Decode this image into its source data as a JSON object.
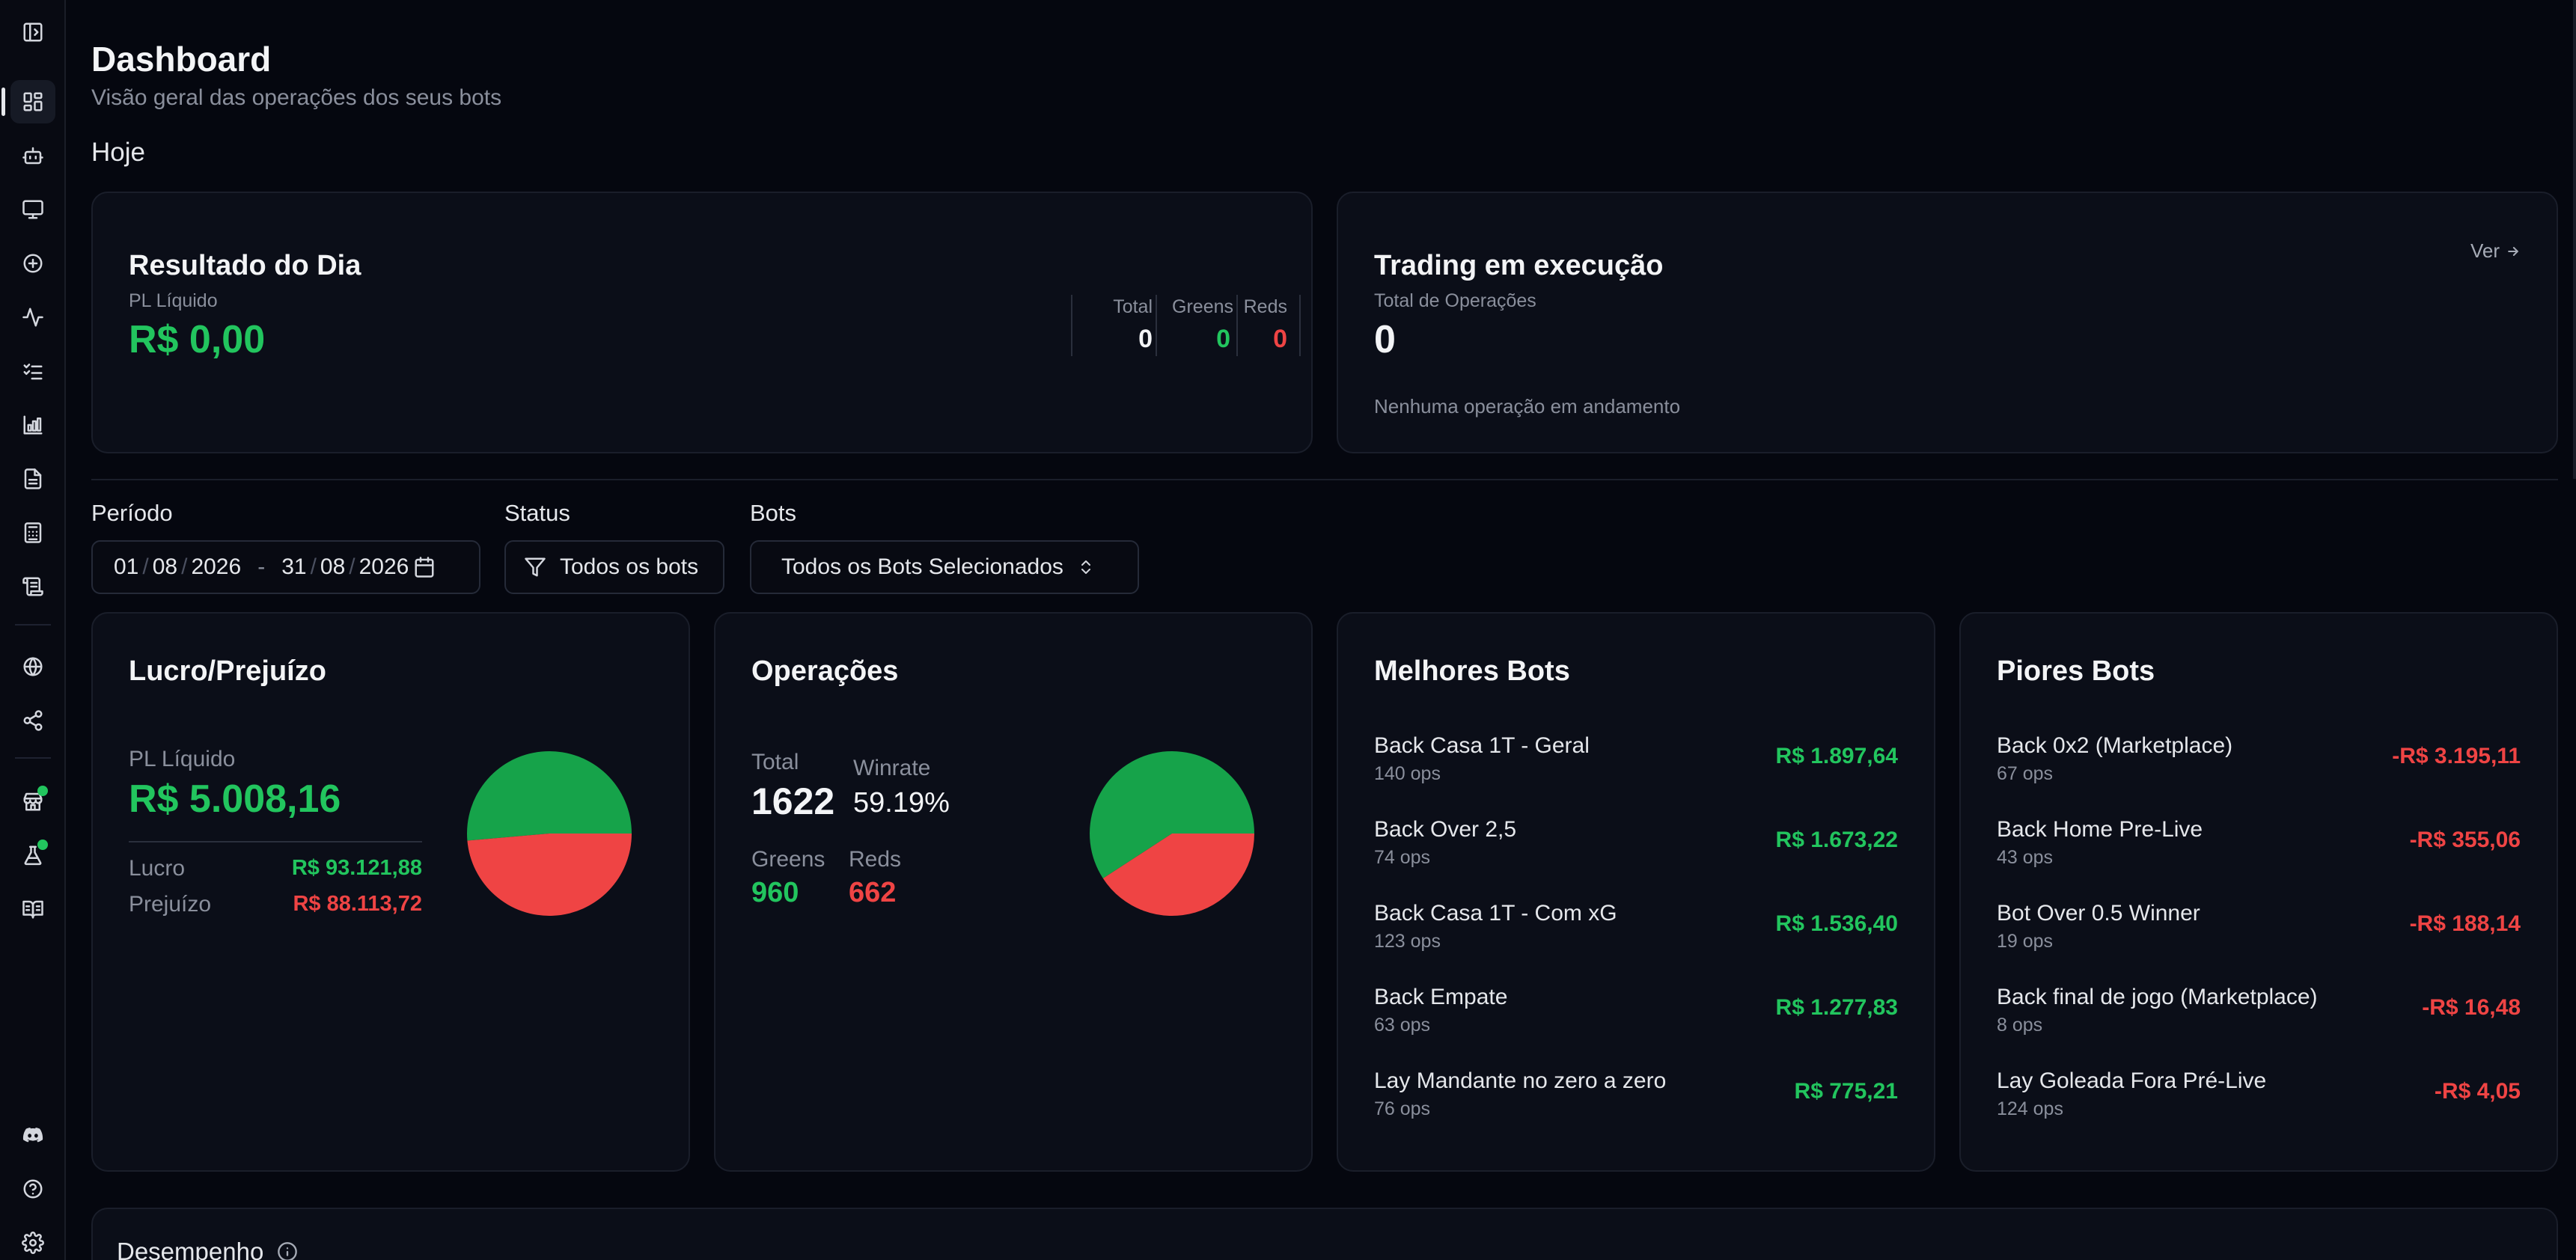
{
  "page": {
    "title": "Dashboard",
    "subtitle": "Visão geral das operações dos seus bots",
    "section_today": "Hoje"
  },
  "sidebar": {
    "icons": [
      "sidebar-toggle-icon",
      "dashboard-icon",
      "bot-icon",
      "monitor-icon",
      "plus-circle-icon",
      "activity-icon",
      "list-check-icon",
      "chart-icon",
      "file-icon",
      "calculator-icon",
      "scroll-icon",
      "globe-icon",
      "share-icon",
      "store-icon",
      "flask-icon",
      "book-icon",
      "discord-icon",
      "help-icon",
      "settings-icon"
    ]
  },
  "day_result": {
    "title": "Resultado do Dia",
    "pl_label": "PL Líquido",
    "pl_value": "R$ 0,00",
    "total_label": "Total",
    "total_value": "0",
    "greens_label": "Greens",
    "greens_value": "0",
    "reds_label": "Reds",
    "reds_value": "0"
  },
  "trading": {
    "title": "Trading em execução",
    "link": "Ver",
    "total_ops_label": "Total de Operações",
    "total_ops_value": "0",
    "empty_text": "Nenhuma operação em andamento"
  },
  "filters": {
    "period_label": "Período",
    "date_start_day": "01",
    "date_start_month": "08",
    "date_start_year": "2026",
    "date_sep": "-",
    "date_end_day": "31",
    "date_end_month": "08",
    "date_end_year": "2026",
    "status_label": "Status",
    "status_value": "Todos os bots",
    "bots_label": "Bots",
    "bots_value": "Todos os Bots Selecionados"
  },
  "profit": {
    "title": "Lucro/Prejuízo",
    "pl_label": "PL Líquido",
    "pl_value": "R$ 5.008,16",
    "lucro_label": "Lucro",
    "lucro_value": "R$ 93.121,88",
    "prejuizo_label": "Prejuízo",
    "prejuizo_value": "R$ 88.113,72",
    "pie": {
      "green": 93121.88,
      "red": 88113.72
    }
  },
  "operations": {
    "title": "Operações",
    "total_label": "Total",
    "total_value": "1622",
    "winrate_label": "Winrate",
    "winrate_value": "59.19%",
    "greens_label": "Greens",
    "greens_value": "960",
    "reds_label": "Reds",
    "reds_value": "662",
    "pie": {
      "green": 960,
      "red": 662
    }
  },
  "best_bots": {
    "title": "Melhores Bots",
    "items": [
      {
        "name": "Back Casa 1T - Geral",
        "ops": "140 ops",
        "value": "R$ 1.897,64"
      },
      {
        "name": "Back Over 2,5",
        "ops": "74 ops",
        "value": "R$ 1.673,22"
      },
      {
        "name": "Back Casa 1T - Com xG",
        "ops": "123 ops",
        "value": "R$ 1.536,40"
      },
      {
        "name": "Back Empate",
        "ops": "63 ops",
        "value": "R$ 1.277,83"
      },
      {
        "name": "Lay Mandante no zero a zero",
        "ops": "76 ops",
        "value": "R$ 775,21"
      }
    ]
  },
  "worst_bots": {
    "title": "Piores Bots",
    "items": [
      {
        "name": "Back 0x2 (Marketplace)",
        "ops": "67 ops",
        "value": "-R$ 3.195,11"
      },
      {
        "name": "Back Home Pre-Live",
        "ops": "43 ops",
        "value": "-R$ 355,06"
      },
      {
        "name": "Bot Over 0.5 Winner",
        "ops": "19 ops",
        "value": "-R$ 188,14"
      },
      {
        "name": "Back final de jogo (Marketplace)",
        "ops": "8 ops",
        "value": "-R$ 16,48"
      },
      {
        "name": "Lay Goleada Fora Pré-Live",
        "ops": "124 ops",
        "value": "-R$ 4,05"
      }
    ]
  },
  "performance": {
    "title": "Desempenho"
  },
  "colors": {
    "green": "#22c55e",
    "red": "#ef4444",
    "pie_green": "#16a34a",
    "pie_red": "#ef4444"
  }
}
